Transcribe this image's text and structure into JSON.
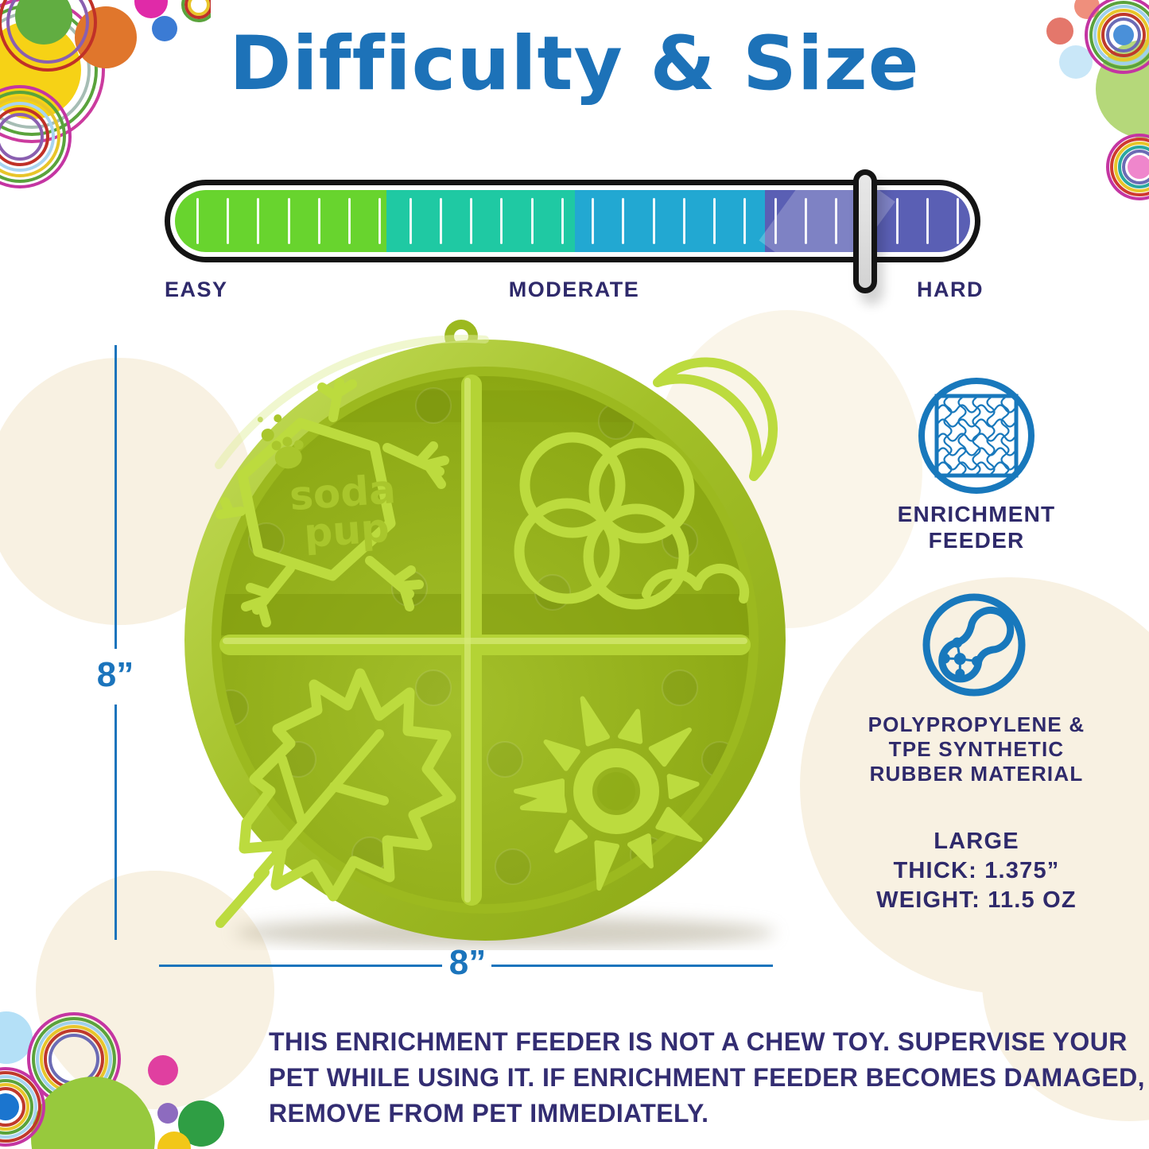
{
  "title": "Difficulty & Size",
  "difficulty_meter": {
    "labels": [
      {
        "id": "easy",
        "text": "EASY"
      },
      {
        "id": "moderate",
        "text": "MODERATE"
      },
      {
        "id": "hard",
        "text": "HARD"
      }
    ],
    "segments": [
      {
        "name": "easy",
        "color": "#68d42e",
        "width_pct": 26.6
      },
      {
        "name": "moderate-low",
        "color": "#1fc9a3",
        "width_pct": 23.7
      },
      {
        "name": "moderate-high",
        "color": "#22a8d2",
        "width_pct": 23.9
      },
      {
        "name": "hard",
        "color": "#5a5fb4",
        "width_pct": 25.8
      }
    ],
    "tick_count": 26,
    "handle": {
      "position_pct": 86.8,
      "color": "#d3d3d3",
      "outline_color": "#141414"
    }
  },
  "product": {
    "brand_line1": "soda",
    "brand_line2": "pup",
    "quadrant_motifs": [
      "snowflake",
      "flower",
      "maple-leaf",
      "sun"
    ],
    "colors": {
      "rim": "#a6c32b",
      "floor": "#92ae17",
      "ridge": "#bcdb3e"
    }
  },
  "dimensions": {
    "height_label": "8”",
    "width_label": "8”",
    "line_color": "#1b74bc"
  },
  "features": [
    {
      "icon": "puzzle-icon",
      "label_lines": [
        "ENRICHMENT",
        "FEEDER"
      ]
    },
    {
      "icon": "material-icon",
      "label_lines": [
        "POLYPROPYLENE  &",
        "TPE SYNTHETIC",
        "RUBBER MATERIAL"
      ]
    }
  ],
  "size_info": {
    "lines": [
      "LARGE",
      "THICK: 1.375”",
      "WEIGHT: 11.5 OZ"
    ]
  },
  "warning_lines": [
    "THIS ENRICHMENT FEEDER IS NOT A CHEW TOY. SUPERVISE YOUR",
    "PET WHILE USING IT. IF ENRICHMENT FEEDER BECOMES DAMAGED,",
    "REMOVE FROM PET IMMEDIATELY."
  ],
  "colors": {
    "title_blue": "#1d72b8",
    "navy_text": "#2f2a6b",
    "dimension_line_blue": "#1b74bc",
    "icon_blue": "#1878bc",
    "cream_blob": "#f8f1e2"
  }
}
